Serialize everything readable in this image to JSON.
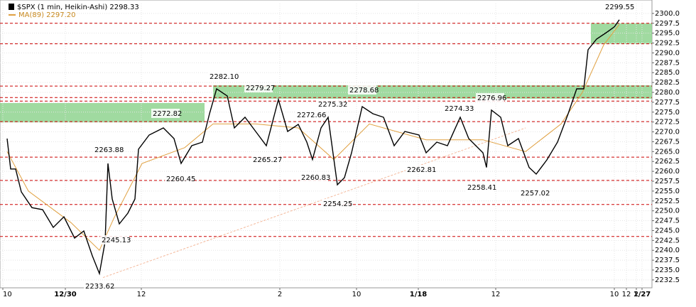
{
  "chart_data": {
    "type": "line",
    "title": "$SPX (1 min, Heikin-Ashi) 2298.33",
    "subtitle": "MA(89) 2297.20",
    "x": [
      10,
      15,
      22,
      30,
      45,
      60,
      75,
      90,
      105,
      118,
      130,
      140,
      148,
      152,
      158,
      168,
      180,
      190,
      195,
      210,
      230,
      245,
      255,
      270,
      285,
      295,
      305,
      320,
      330,
      345,
      360,
      375,
      392,
      405,
      420,
      432,
      440,
      452,
      462,
      475,
      485,
      495,
      510,
      525,
      540,
      555,
      570,
      590,
      600,
      615,
      630,
      648,
      660,
      680,
      685,
      692,
      705,
      715,
      730,
      745,
      755,
      770,
      785,
      800,
      812,
      822,
      828,
      840,
      855,
      865,
      872
    ],
    "series": [
      {
        "name": "$SPX",
        "color": "#000000",
        "values": [
          2268.3,
          2260.6,
          2260.6,
          2254.8,
          2250.8,
          2250.3,
          2245.8,
          2248.5,
          2243.1,
          2244.9,
          2238.6,
          2234.1,
          2242.2,
          2262.0,
          2253.0,
          2246.7,
          2249.4,
          2253.0,
          2265.6,
          2269.2,
          2271.0,
          2268.3,
          2262.0,
          2266.5,
          2267.4,
          2274.6,
          2280.9,
          2279.1,
          2271.0,
          2273.7,
          2270.1,
          2266.5,
          2278.2,
          2270.1,
          2271.9,
          2267.4,
          2263.0,
          2271.0,
          2273.7,
          2256.6,
          2258.4,
          2264.7,
          2276.4,
          2274.6,
          2273.7,
          2266.5,
          2270.1,
          2269.2,
          2264.7,
          2267.4,
          2266.5,
          2273.7,
          2268.3,
          2264.7,
          2261.0,
          2275.5,
          2273.7,
          2266.5,
          2268.3,
          2261.0,
          2259.3,
          2262.9,
          2267.4,
          2274.6,
          2280.9,
          2280.9,
          2290.8,
          2293.5,
          2295.3,
          2296.6,
          2298.4
        ]
      },
      {
        "name": "MA(89)",
        "color": "#e0a040",
        "x": [
          10,
          40,
          100,
          140,
          160,
          200,
          260,
          300,
          360,
          420,
          470,
          520,
          600,
          680,
          740,
          790,
          820,
          850,
          872
        ],
        "values": [
          2265,
          2255,
          2247,
          2240,
          2248,
          2262,
          2266,
          2272,
          2272,
          2271,
          2263,
          2272,
          2268,
          2268,
          2265,
          2272,
          2280,
          2292,
          2297.2
        ]
      }
    ],
    "trendline": {
      "x": [
        145,
        740
      ],
      "values": [
        2233.1,
        2271
      ]
    },
    "levels": [
      2297.5,
      2292.3,
      2281.6,
      2278.7,
      2277.8,
      2272.6,
      2263.6,
      2257.7,
      2251.6,
      2243.5
    ],
    "zones": [
      {
        "from": 832,
        "to": 918,
        "low": 2292.3,
        "high": 2297.5
      },
      {
        "from": 300,
        "to": 918,
        "low": 2278.4,
        "high": 2281.8
      },
      {
        "from": 0,
        "to": 288,
        "low": 2272.4,
        "high": 2277.3
      }
    ],
    "annotations": [
      "2299.55",
      "2282.10",
      "2279.27",
      "2278.68",
      "2276.96",
      "2275.32",
      "2274.33",
      "2272.82",
      "2272.66",
      "2263.88",
      "2265.27",
      "2262.81",
      "2260.45",
      "2260.83",
      "2258.41",
      "2257.02",
      "2254.25",
      "2245.13",
      "2233.62"
    ],
    "xlim": [
      0,
      918
    ],
    "ylim": [
      2230.5,
      2302.5
    ],
    "xticks": [
      {
        "value": 4,
        "label": "10"
      },
      {
        "value": 92,
        "label": "12/30"
      },
      {
        "value": 199,
        "label": "12"
      },
      {
        "value": 394,
        "label": "2"
      },
      {
        "value": 502,
        "label": "10"
      },
      {
        "value": 589,
        "label": "1/18"
      },
      {
        "value": 698,
        "label": "12"
      },
      {
        "value": 865,
        "label": "10"
      },
      {
        "value": 882,
        "label": "12"
      },
      {
        "value": 896,
        "label": "2"
      },
      {
        "value": 904,
        "label": "1/27"
      }
    ],
    "yticks": [
      {
        "value": 2300,
        "label": "2300.0"
      },
      2297.5,
      {
        "value": 2295,
        "label": "2295.0"
      },
      2292.5,
      {
        "value": 2290,
        "label": "2290.0"
      },
      2287.5,
      {
        "value": 2285,
        "label": "2285.0"
      },
      2282.5,
      {
        "value": 2280,
        "label": "2280.0"
      },
      2277.5,
      {
        "value": 2275,
        "label": "2275.0"
      },
      2272.5,
      {
        "value": 2270,
        "label": "2270.0"
      },
      2267.5,
      {
        "value": 2265,
        "label": "2265.0"
      },
      2262.5,
      {
        "value": 2260,
        "label": "2260.0"
      },
      2257.5,
      {
        "value": 2255,
        "label": "2255.0"
      },
      2252.5,
      {
        "value": 2250,
        "label": "2250.0"
      },
      2247.5,
      {
        "value": 2245,
        "label": "2245.0"
      },
      2242.5,
      {
        "value": 2240,
        "label": "2240.0"
      },
      2237.5,
      {
        "value": 2235,
        "label": "2235.0"
      },
      2232.5
    ],
    "grid": true,
    "level_color": "#cc0000",
    "zone_color": "#8fd48f",
    "trend_color": "#f4b89a"
  }
}
